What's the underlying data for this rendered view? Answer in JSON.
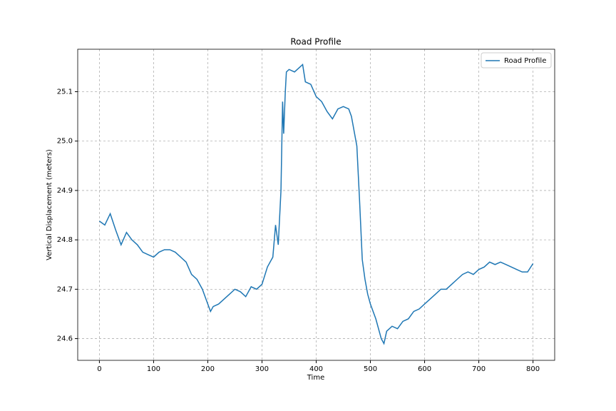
{
  "chart_data": {
    "type": "line",
    "title": "Road Profile",
    "xlabel": "Time",
    "ylabel": "Vertical Displacement (meters)",
    "x": [
      0,
      10,
      20,
      30,
      40,
      50,
      60,
      70,
      80,
      90,
      100,
      110,
      120,
      130,
      140,
      150,
      160,
      170,
      180,
      190,
      200,
      205,
      210,
      220,
      230,
      240,
      250,
      260,
      270,
      280,
      290,
      300,
      310,
      320,
      325,
      330,
      335,
      338,
      340,
      343,
      345,
      350,
      360,
      370,
      375,
      380,
      390,
      400,
      410,
      420,
      430,
      440,
      450,
      460,
      465,
      470,
      475,
      480,
      485,
      490,
      495,
      500,
      510,
      520,
      525,
      530,
      540,
      550,
      560,
      570,
      580,
      590,
      600,
      610,
      620,
      630,
      640,
      650,
      660,
      670,
      680,
      690,
      700,
      710,
      720,
      730,
      740,
      750,
      760,
      770,
      780,
      790,
      800
    ],
    "series": [
      {
        "name": "Road Profile",
        "color": "#1f77b4",
        "values": [
          24.838,
          24.83,
          24.853,
          24.82,
          24.79,
          24.815,
          24.8,
          24.79,
          24.775,
          24.77,
          24.765,
          24.775,
          24.78,
          24.78,
          24.775,
          24.765,
          24.755,
          24.73,
          24.72,
          24.7,
          24.67,
          24.655,
          24.665,
          24.67,
          24.68,
          24.69,
          24.7,
          24.695,
          24.685,
          24.705,
          24.7,
          24.71,
          24.745,
          24.765,
          24.83,
          24.79,
          24.9,
          25.08,
          25.015,
          25.1,
          25.14,
          25.145,
          25.14,
          25.15,
          25.155,
          25.12,
          25.115,
          25.09,
          25.08,
          25.06,
          25.045,
          25.065,
          25.07,
          25.065,
          25.05,
          25.02,
          24.99,
          24.88,
          24.76,
          24.72,
          24.69,
          24.67,
          24.64,
          24.6,
          24.59,
          24.615,
          24.625,
          24.62,
          24.635,
          24.64,
          24.655,
          24.66,
          24.67,
          24.68,
          24.69,
          24.7,
          24.7,
          24.71,
          24.72,
          24.73,
          24.735,
          24.73,
          24.74,
          24.745,
          24.755,
          24.75,
          24.755,
          24.75,
          24.745,
          24.74,
          24.735,
          24.735,
          24.752
        ]
      }
    ],
    "xlim": [
      -40,
      840
    ],
    "ylim": [
      24.556,
      25.186
    ],
    "xticks": [
      0,
      100,
      200,
      300,
      400,
      500,
      600,
      700,
      800
    ],
    "yticks": [
      24.6,
      24.7,
      24.8,
      24.9,
      {
        "value": 25.0,
        "label": "25.0"
      },
      25.1
    ],
    "grid": true,
    "legend": "upper right"
  }
}
